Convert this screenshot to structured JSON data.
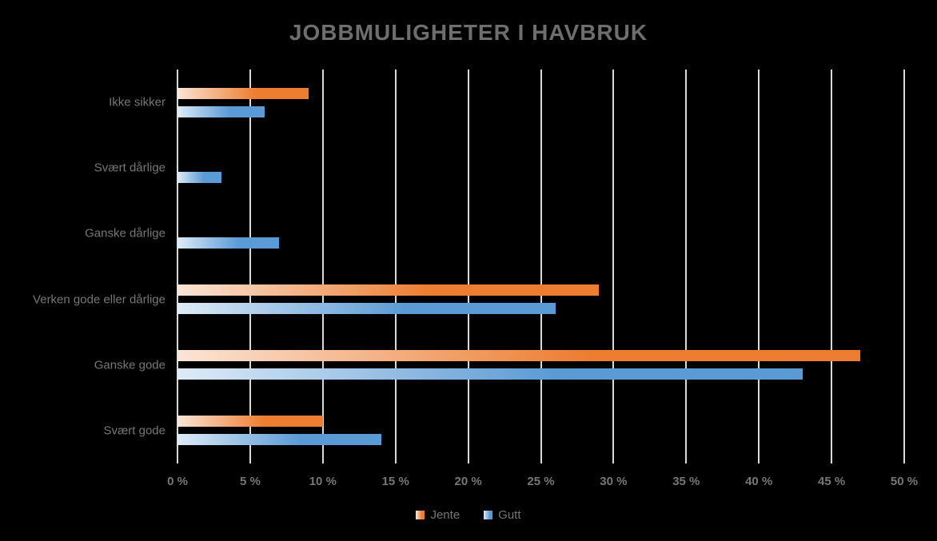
{
  "title": "JOBBMULIGHETER I HAVBRUK",
  "colors": {
    "background": "#000000",
    "title_text": "#6e6e6e",
    "axis_text": "#767676",
    "legend_text": "#767676",
    "gridline": "#d9d9d9"
  },
  "chart_data": {
    "type": "bar",
    "orientation": "horizontal",
    "title": "JOBBMULIGHETER I HAVBRUK",
    "categories": [
      "Ikke sikker",
      "Svært dårlige",
      "Ganske dårlige",
      "Verken gode eller dårlige",
      "Ganske gode",
      "Svært gode"
    ],
    "series": [
      {
        "name": "Jente",
        "color": "#ed7d31",
        "color_light": "#fbe5d6",
        "values": [
          9,
          0,
          0,
          29,
          47,
          10
        ]
      },
      {
        "name": "Gutt",
        "color": "#5b9bd5",
        "color_light": "#deebf7",
        "values": [
          6,
          3,
          7,
          26,
          43,
          14
        ]
      }
    ],
    "xlim": [
      0,
      50
    ],
    "x_tick_step": 5,
    "x_tick_labels": [
      "0 %",
      "5 %",
      "10 %",
      "15 %",
      "20 %",
      "25 %",
      "30 %",
      "35 %",
      "40 %",
      "45 %",
      "50 %"
    ],
    "grid": true,
    "legend_position": "bottom"
  },
  "legend": {
    "items": [
      {
        "label": "Jente"
      },
      {
        "label": "Gutt"
      }
    ]
  }
}
